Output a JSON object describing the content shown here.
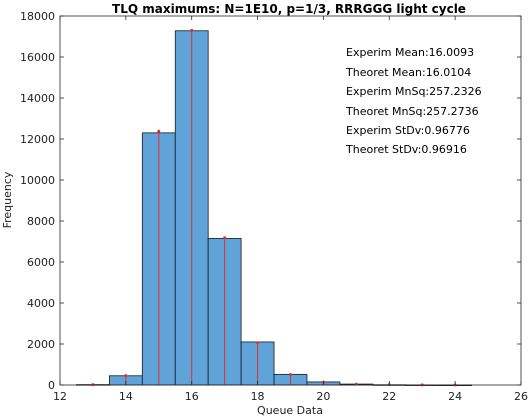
{
  "chart_data": {
    "type": "bar",
    "title": "TLQ maximums: N=1E10, p=1/3, RRRGGG light cycle",
    "xlabel": "Queue Data",
    "ylabel": "Frequency",
    "xlim": [
      12,
      26
    ],
    "ylim": [
      0,
      18000
    ],
    "xticks": [
      12,
      14,
      16,
      18,
      20,
      22,
      24,
      26
    ],
    "yticks": [
      0,
      2000,
      4000,
      6000,
      8000,
      10000,
      12000,
      14000,
      16000,
      18000
    ],
    "bar_color": "#5fa3d9",
    "bar_edge_color": "#1a1a1a",
    "theory_marker_color": "#e0302a",
    "bars": [
      {
        "x": 13,
        "value": 20
      },
      {
        "x": 14,
        "value": 450
      },
      {
        "x": 15,
        "value": 12300
      },
      {
        "x": 16,
        "value": 17280
      },
      {
        "x": 17,
        "value": 7150
      },
      {
        "x": 18,
        "value": 2100
      },
      {
        "x": 19,
        "value": 520
      },
      {
        "x": 20,
        "value": 150
      },
      {
        "x": 21,
        "value": 45
      },
      {
        "x": 22,
        "value": 12
      },
      {
        "x": 23,
        "value": 4
      },
      {
        "x": 24,
        "value": 1
      }
    ],
    "theory": [
      {
        "x": 13,
        "value": 20
      },
      {
        "x": 14,
        "value": 460
      },
      {
        "x": 15,
        "value": 12380
      },
      {
        "x": 16,
        "value": 17300
      },
      {
        "x": 17,
        "value": 7180
      },
      {
        "x": 18,
        "value": 2060
      },
      {
        "x": 19,
        "value": 510
      },
      {
        "x": 20,
        "value": 140
      },
      {
        "x": 21,
        "value": 40
      },
      {
        "x": 22,
        "value": 12
      },
      {
        "x": 23,
        "value": 4
      },
      {
        "x": 24,
        "value": 2
      }
    ],
    "annotations": [
      "Experim Mean:16.0093",
      "Theoret Mean:16.0104",
      "Experim MnSq:257.2326",
      "Theoret MnSq:257.2736",
      "Experim StDv:0.96776",
      "Theoret StDv:0.96916"
    ]
  }
}
